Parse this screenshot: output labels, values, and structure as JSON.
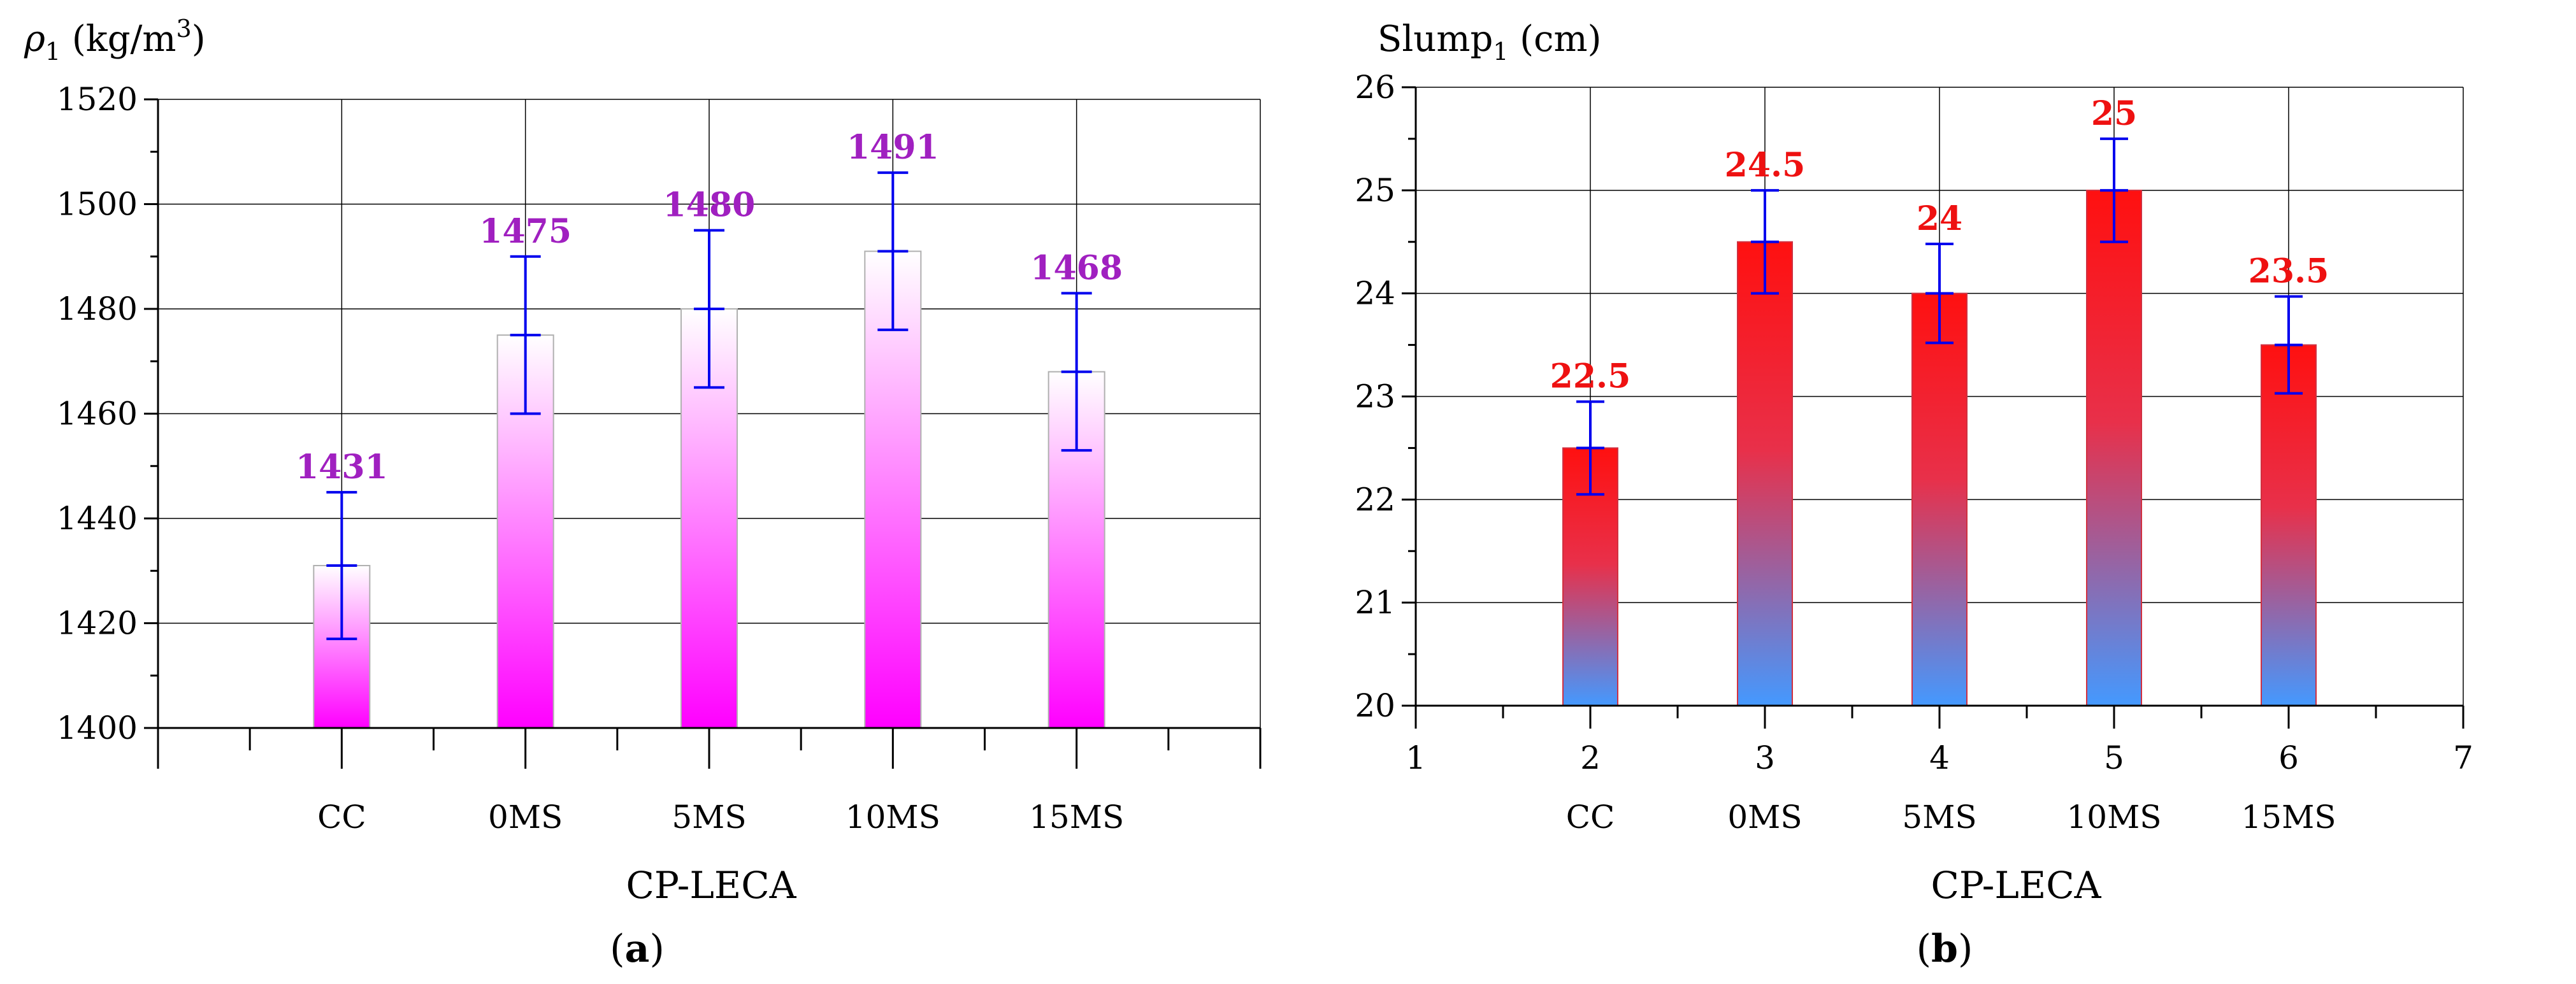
{
  "chart_data": [
    {
      "type": "bar",
      "panel": "a",
      "ylabel_main": "ρ",
      "ylabel_sub": "1",
      "ylabel_unit": " (kg/m",
      "ylabel_sup": "3",
      "ylabel_close": ")",
      "xlabel": "CP-LECA",
      "categories": [
        "CC",
        "0MS",
        "5MS",
        "10MS",
        "15MS"
      ],
      "values": [
        1431,
        1475,
        1480,
        1491,
        1468
      ],
      "value_labels": [
        "1431",
        "1475",
        "1480",
        "1491",
        "1468"
      ],
      "error": [
        14,
        15,
        15,
        15,
        15
      ],
      "ylim": [
        1400,
        1520
      ],
      "yticks": [
        "1400",
        "1420",
        "1440",
        "1460",
        "1480",
        "1500",
        "1520"
      ],
      "x_numeric_ticks": [],
      "grid": true,
      "colors": {
        "bar_top": "#ffffff",
        "bar_bottom": "#ff00ff",
        "label": "#a020c0",
        "error": "#0000ee",
        "grid": "#000000"
      }
    },
    {
      "type": "bar",
      "panel": "b",
      "ylabel_main": "Slump",
      "ylabel_sub": "1",
      "ylabel_unit": " (cm)",
      "ylabel_sup": "",
      "ylabel_close": "",
      "xlabel": "CP-LECA",
      "categories": [
        "CC",
        "0MS",
        "5MS",
        "10MS",
        "15MS"
      ],
      "values": [
        22.5,
        24.5,
        24,
        25,
        23.5
      ],
      "value_labels": [
        "22.5",
        "24.5",
        "24",
        "25",
        "23.5"
      ],
      "error": [
        0.45,
        0.5,
        0.48,
        0.5,
        0.47
      ],
      "ylim": [
        20,
        26
      ],
      "yticks": [
        "20",
        "21",
        "22",
        "23",
        "24",
        "25",
        "26"
      ],
      "x_numeric_ticks": [
        "1",
        "2",
        "3",
        "4",
        "5",
        "6",
        "7"
      ],
      "grid": true,
      "colors": {
        "bar_top": "#ff0000",
        "bar_bottom": "#4499ff",
        "label": "#ee1111",
        "error": "#0000ee",
        "grid": "#000000"
      }
    }
  ],
  "captions": {
    "a": "a",
    "b": "b"
  }
}
